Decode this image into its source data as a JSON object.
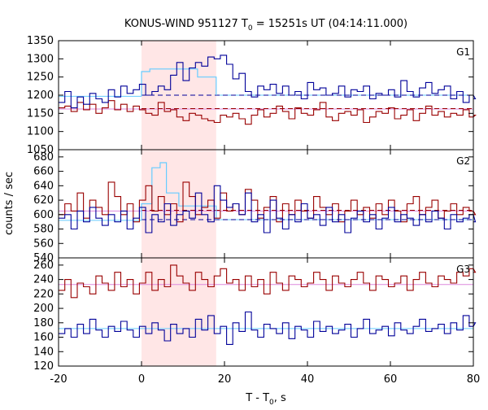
{
  "chart_data": {
    "type": "line",
    "title": "KONUS-WIND 951127 T0 = 15251s UT (04:14:11.000)",
    "title_parts": {
      "prefix": "KONUS-WIND 951127 T",
      "subscript": "0",
      "suffix": " = 15251s UT (04:14:11.000)"
    },
    "xlabel_parts": {
      "prefix": "T - T",
      "subscript": "0",
      "suffix": ", s"
    },
    "ylabel": "counts / sec",
    "xlim": [
      -20,
      80
    ],
    "xticks": [
      -20,
      0,
      20,
      40,
      60,
      80
    ],
    "shaded_interval": [
      0,
      18
    ],
    "colors": {
      "high_series": "#990000",
      "low_series": "#000099",
      "background_fit_high": "#dd88dd",
      "background_fit_low": "#66ccff",
      "shade": "#ffe6e6"
    },
    "bin_width": 1.5,
    "panels": [
      {
        "name": "G1",
        "ylim": [
          1050,
          1350
        ],
        "yticks": [
          1050,
          1100,
          1150,
          1200,
          1250,
          1300,
          1350
        ],
        "blue_values": [
          1180,
          1210,
          1165,
          1195,
          1175,
          1205,
          1190,
          1180,
          1215,
          1195,
          1225,
          1205,
          1215,
          1230,
          1200,
          1210,
          1225,
          1215,
          1255,
          1290,
          1240,
          1275,
          1290,
          1280,
          1305,
          1300,
          1310,
          1285,
          1245,
          1260,
          1210,
          1195,
          1225,
          1215,
          1230,
          1205,
          1225,
          1200,
          1210,
          1190,
          1235,
          1215,
          1220,
          1200,
          1205,
          1225,
          1195,
          1215,
          1210,
          1225,
          1190,
          1205,
          1200,
          1215,
          1195,
          1240,
          1210,
          1195,
          1220,
          1235,
          1205,
          1215,
          1225,
          1190,
          1210,
          1180,
          1200,
          1190
        ],
        "red_values": [
          1165,
          1170,
          1155,
          1180,
          1160,
          1175,
          1150,
          1165,
          1185,
          1160,
          1175,
          1155,
          1170,
          1160,
          1150,
          1145,
          1180,
          1155,
          1160,
          1140,
          1130,
          1150,
          1145,
          1135,
          1130,
          1125,
          1145,
          1140,
          1150,
          1135,
          1120,
          1145,
          1160,
          1140,
          1150,
          1170,
          1155,
          1135,
          1165,
          1150,
          1145,
          1160,
          1180,
          1140,
          1130,
          1150,
          1155,
          1145,
          1160,
          1125,
          1140,
          1155,
          1150,
          1165,
          1135,
          1145,
          1160,
          1130,
          1150,
          1170,
          1145,
          1155,
          1140,
          1150,
          1145,
          1160,
          1140,
          1145
        ],
        "blue_fit_before": 1197,
        "blue_fit_after": 1200,
        "blue_peak_steps": [
          [
            0,
            2,
            1265
          ],
          [
            2,
            13.5,
            1272
          ],
          [
            13.5,
            18,
            1250
          ]
        ],
        "red_fit": 1162,
        "red_fit_dashed": 1163
      },
      {
        "name": "G2",
        "ylim": [
          540,
          690
        ],
        "yticks": [
          540,
          560,
          580,
          600,
          620,
          640,
          660,
          680
        ],
        "blue_values": [
          595,
          600,
          580,
          605,
          590,
          610,
          595,
          585,
          600,
          590,
          605,
          580,
          595,
          610,
          575,
          600,
          590,
          615,
          585,
          600,
          605,
          595,
          630,
          600,
          590,
          640,
          620,
          610,
          615,
          600,
          630,
          590,
          600,
          575,
          620,
          595,
          580,
          600,
          590,
          615,
          595,
          600,
          585,
          610,
          590,
          600,
          575,
          595,
          605,
          590,
          600,
          580,
          595,
          610,
          590,
          600,
          595,
          585,
          600,
          590,
          605,
          595,
          580,
          600,
          590,
          595,
          600,
          590
        ],
        "red_values": [
          600,
          615,
          605,
          630,
          595,
          620,
          610,
          600,
          645,
          625,
          600,
          615,
          590,
          620,
          640,
          605,
          625,
          600,
          615,
          590,
          645,
          625,
          600,
          610,
          620,
          595,
          630,
          605,
          615,
          600,
          635,
          620,
          595,
          610,
          625,
          590,
          615,
          600,
          620,
          605,
          595,
          625,
          610,
          600,
          615,
          590,
          605,
          620,
          600,
          610,
          595,
          615,
          600,
          620,
          605,
          590,
          615,
          625,
          600,
          610,
          620,
          595,
          605,
          615,
          600,
          610,
          605,
          600
        ],
        "blue_fit_before": 592,
        "blue_fit_after": 593,
        "blue_peak_steps": [
          [
            0,
            2.5,
            615
          ],
          [
            2.5,
            4.5,
            665
          ],
          [
            4.5,
            6,
            672
          ],
          [
            6,
            9,
            630
          ],
          [
            9,
            18,
            612
          ]
        ],
        "red_fit": 605,
        "red_fit_dashed": 606
      },
      {
        "name": "G3",
        "ylim": [
          120,
          270
        ],
        "yticks": [
          120,
          140,
          160,
          180,
          200,
          220,
          240,
          260
        ],
        "blue_values": [
          165,
          172,
          160,
          178,
          165,
          185,
          170,
          160,
          175,
          168,
          182,
          170,
          160,
          175,
          165,
          180,
          170,
          155,
          178,
          165,
          172,
          160,
          185,
          170,
          190,
          165,
          175,
          150,
          180,
          168,
          195,
          170,
          160,
          178,
          172,
          165,
          180,
          158,
          175,
          170,
          160,
          182,
          168,
          175,
          165,
          170,
          178,
          160,
          172,
          185,
          165,
          170,
          175,
          162,
          180,
          170,
          165,
          175,
          185,
          168,
          172,
          178,
          165,
          180,
          170,
          190,
          175,
          180
        ],
        "red_values": [
          225,
          240,
          215,
          235,
          230,
          220,
          245,
          235,
          225,
          250,
          230,
          240,
          220,
          235,
          250,
          225,
          240,
          230,
          260,
          245,
          235,
          225,
          250,
          240,
          230,
          245,
          255,
          235,
          240,
          225,
          245,
          230,
          240,
          220,
          250,
          235,
          225,
          245,
          240,
          230,
          235,
          250,
          240,
          225,
          245,
          235,
          230,
          240,
          250,
          235,
          225,
          245,
          240,
          230,
          235,
          245,
          225,
          240,
          250,
          235,
          230,
          245,
          240,
          235,
          250,
          245,
          255,
          250
        ],
        "blue_fit": 172,
        "red_fit": 233
      }
    ]
  }
}
